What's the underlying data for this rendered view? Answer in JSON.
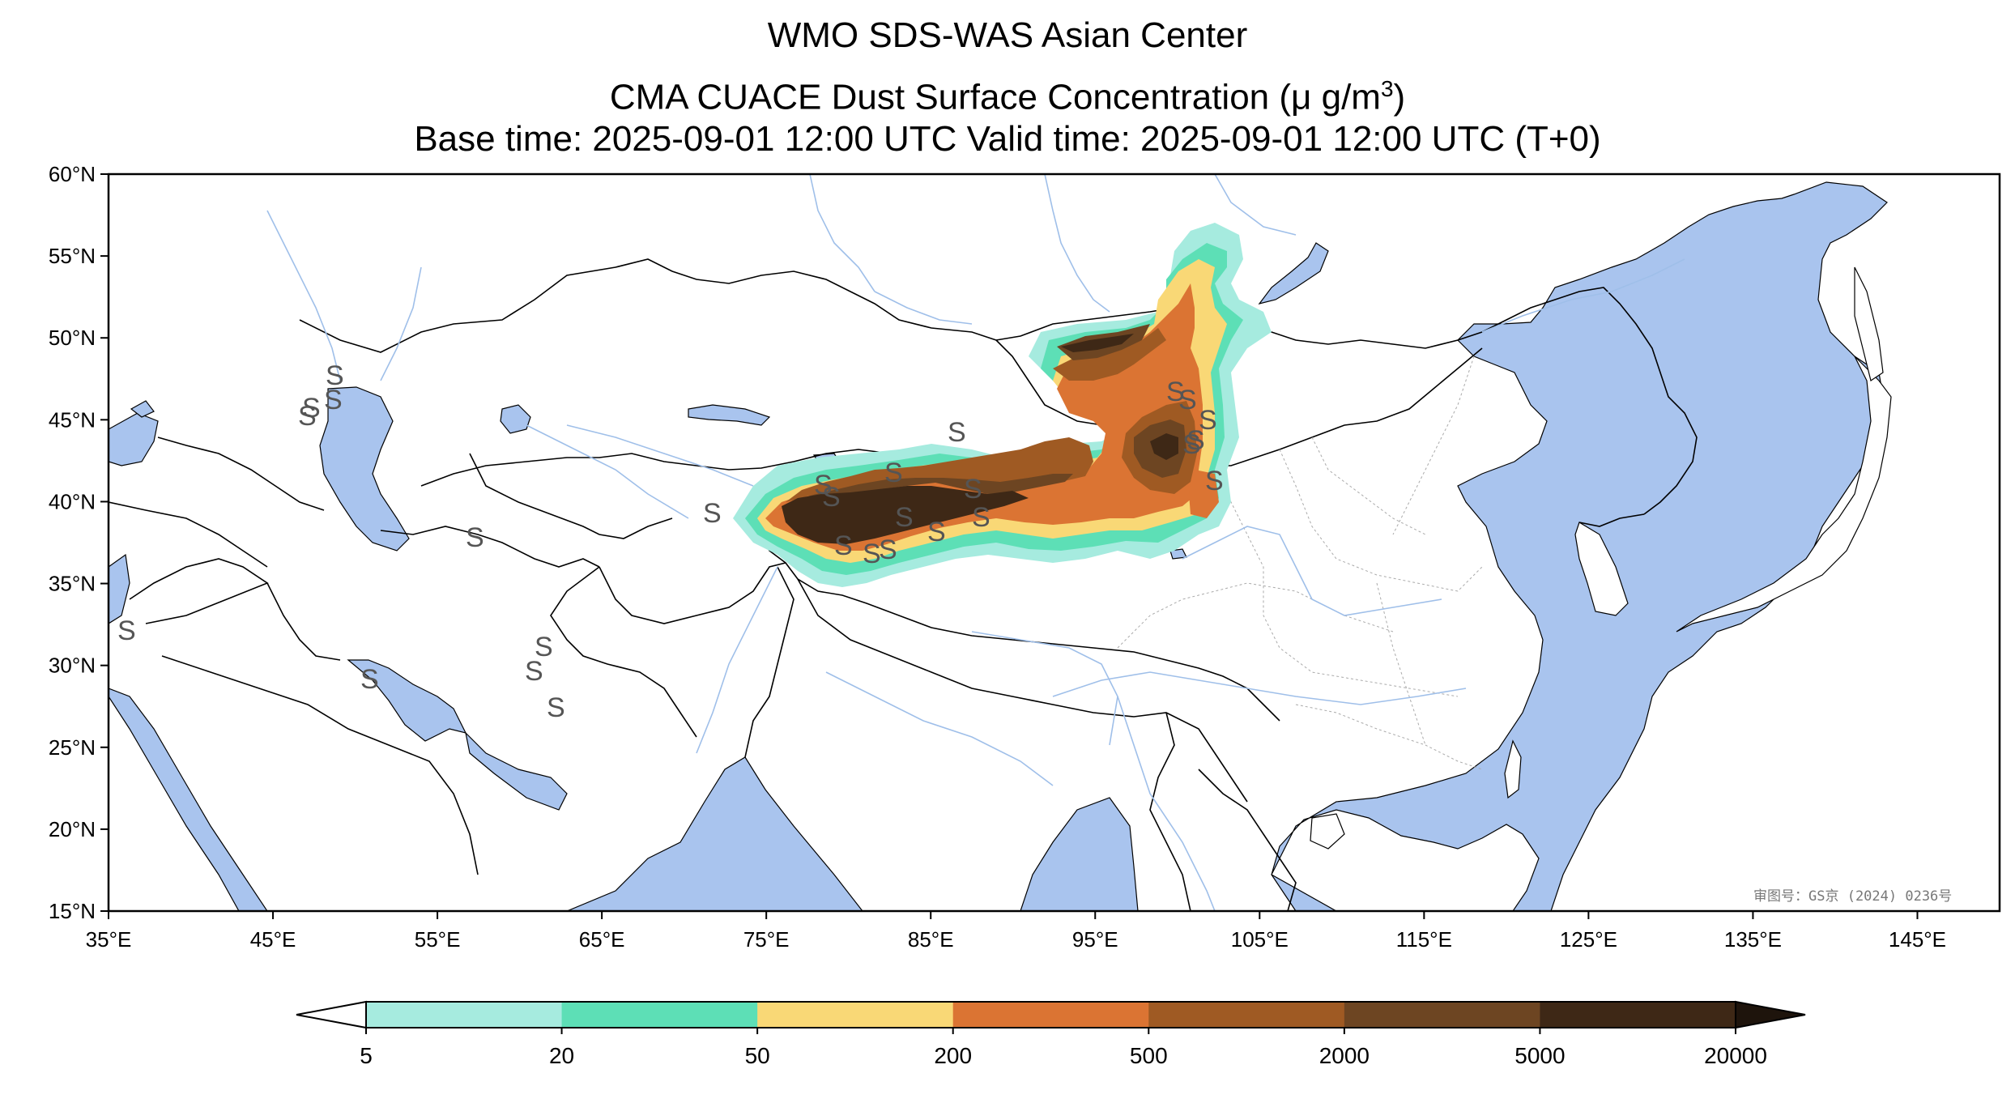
{
  "title": {
    "line1": "WMO SDS-WAS Asian Center",
    "line2_prefix": "CMA CUACE Dust Surface Concentration (",
    "line2_unit": "μ g/m",
    "line2_sup": "3",
    "line2_suffix": ")",
    "line3": "Base time: 2025-09-01 12:00 UTC Valid time: 2025-09-01 12:00 UTC (T+0)"
  },
  "map": {
    "lon_range": [
      35,
      150
    ],
    "lat_range": [
      15,
      60
    ],
    "lon_ticks": [
      "35°E",
      "45°E",
      "55°E",
      "65°E",
      "75°E",
      "85°E",
      "95°E",
      "105°E",
      "115°E",
      "125°E",
      "135°E",
      "145°E"
    ],
    "lat_ticks": [
      "60°N",
      "55°N",
      "50°N",
      "45°N",
      "40°N",
      "35°N",
      "30°N",
      "25°N",
      "20°N",
      "15°N"
    ],
    "ocean_color": "#a9c4ee",
    "land_color": "#ffffff",
    "river_color": "#9fbfe9",
    "approval_text": "审图号：GS京 (2024) 0236号"
  },
  "colorbar": {
    "levels": [
      "5",
      "20",
      "50",
      "200",
      "500",
      "2000",
      "5000",
      "20000"
    ],
    "colors": [
      "#a6ebdf",
      "#5ddfb6",
      "#f9d876",
      "#db7433",
      "#9f5a23",
      "#6d4522",
      "#3e2816"
    ],
    "under_color": "#ffffff",
    "over_color": "#1e140c"
  },
  "dust_layers": [
    {
      "level": "5-20",
      "color": "#a6ebdf"
    },
    {
      "level": "20-50",
      "color": "#5ddfb6"
    },
    {
      "level": "50-200",
      "color": "#f9d876"
    },
    {
      "level": "200-500",
      "color": "#db7433"
    },
    {
      "level": "500-2000",
      "color": "#9f5a23"
    },
    {
      "level": "2000-5000",
      "color": "#6d4522"
    },
    {
      "level": "5000-20000",
      "color": "#3e2816"
    }
  ],
  "dust_symbol": "S"
}
